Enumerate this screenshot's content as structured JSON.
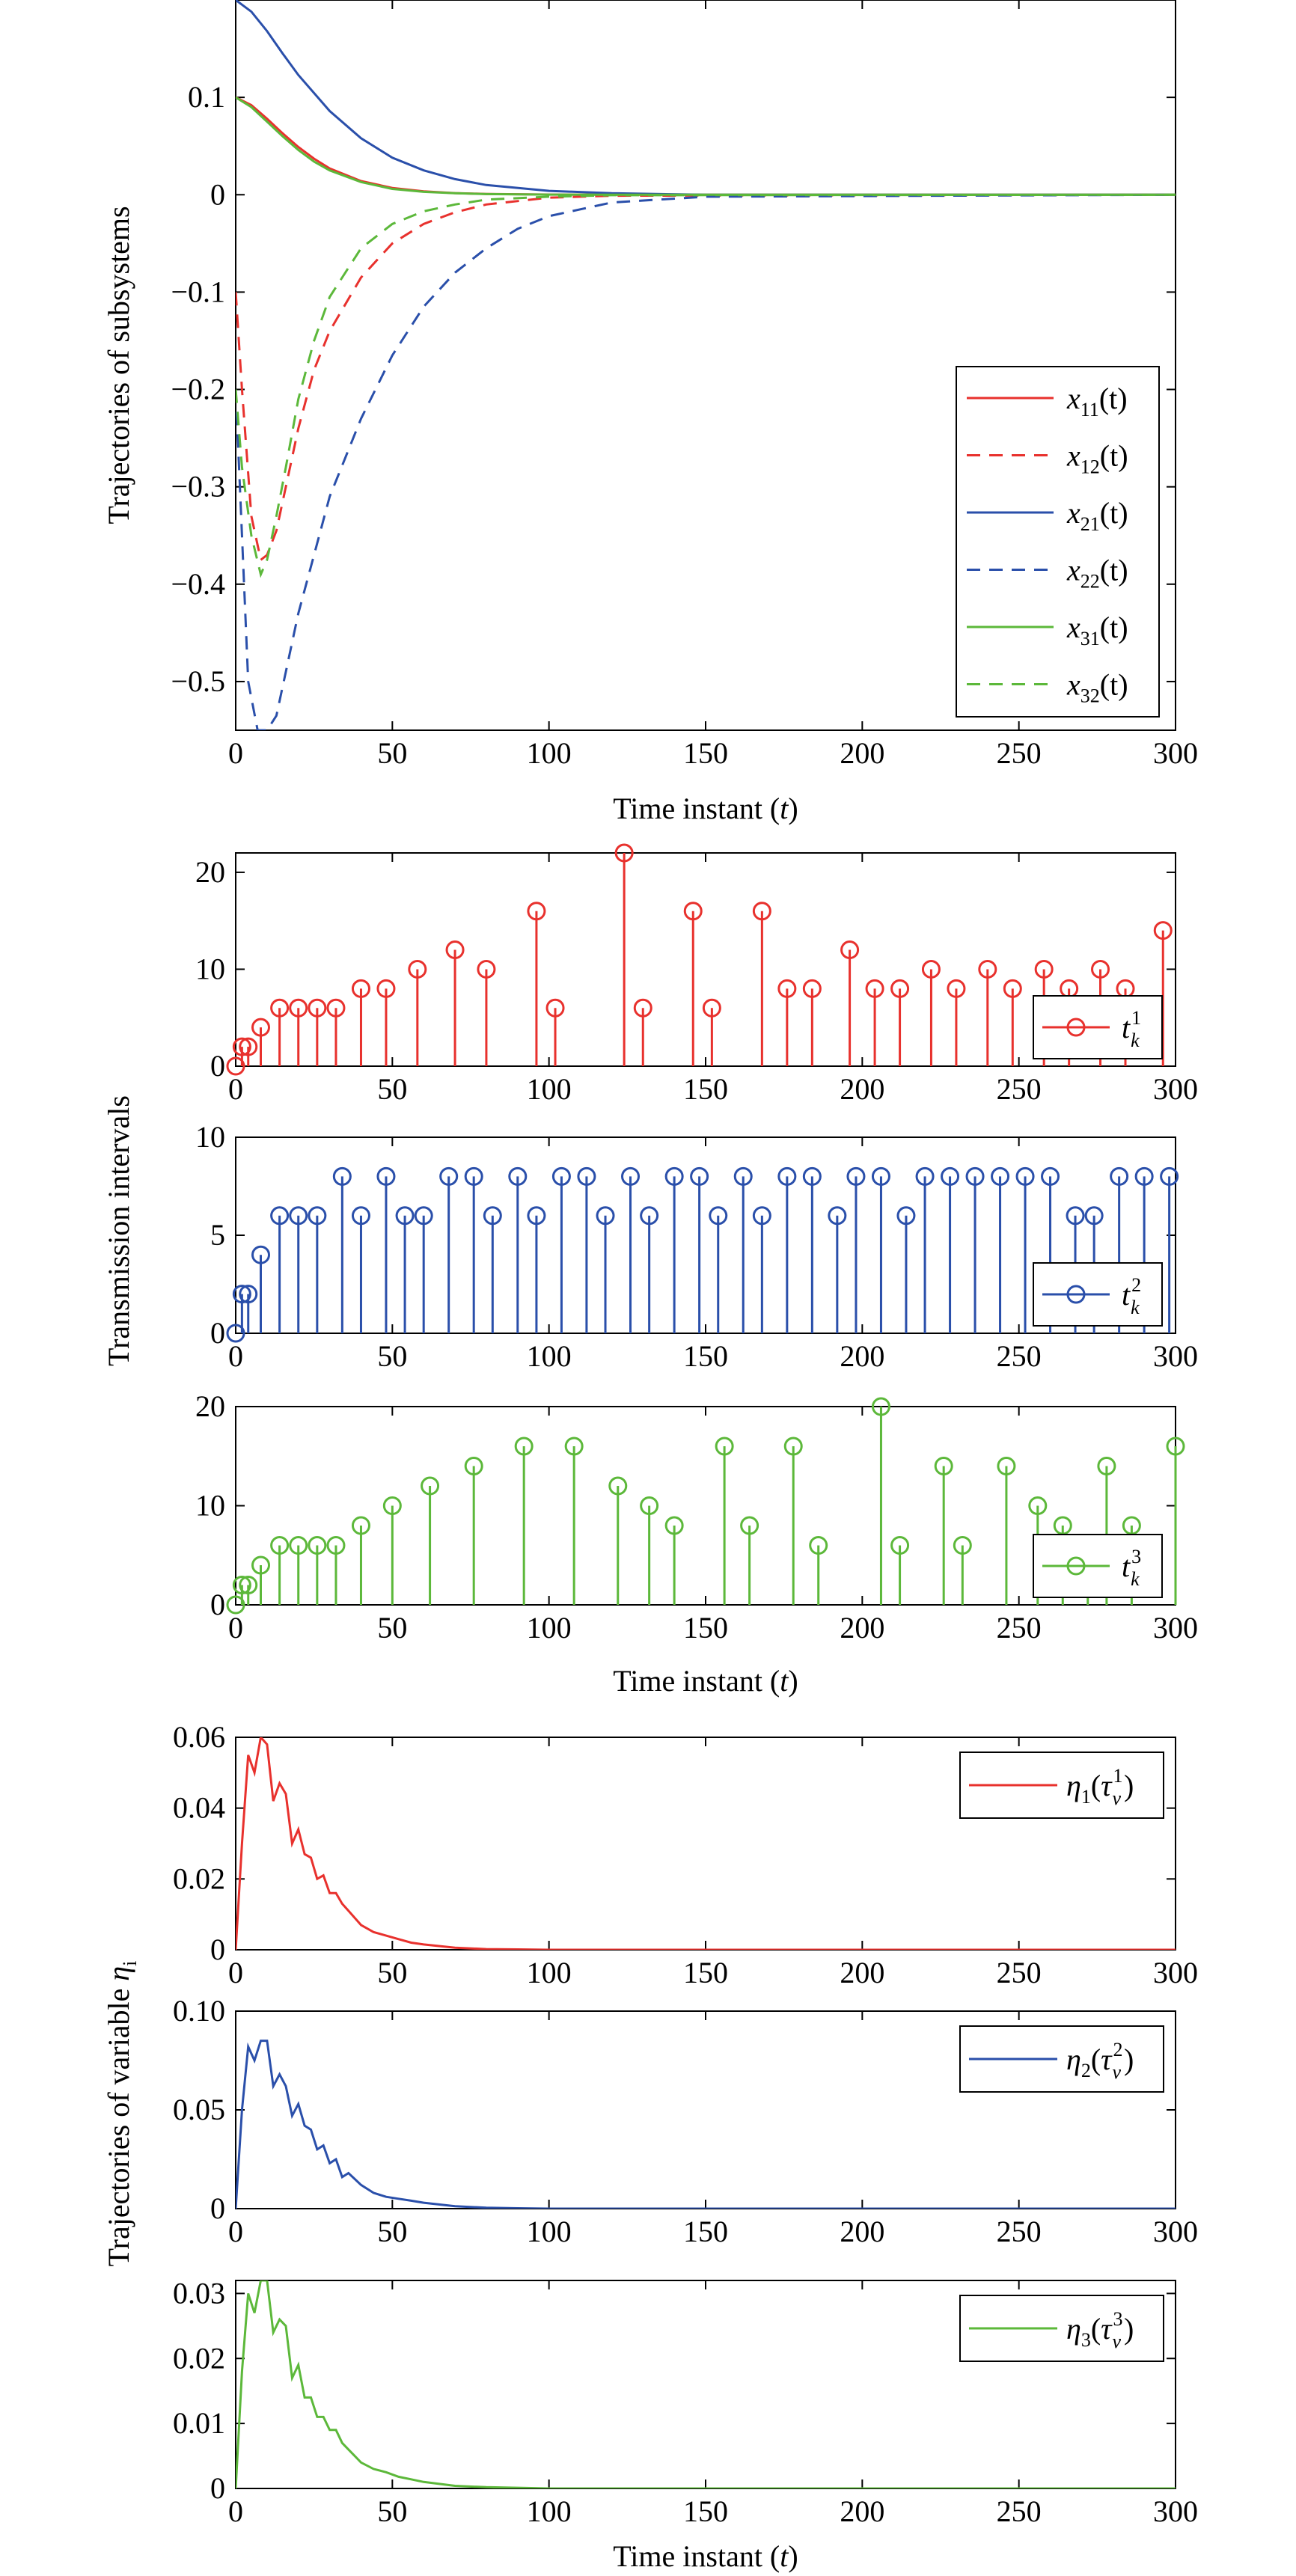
{
  "colors": {
    "red": "#e8312d",
    "blue": "#2a4faa",
    "green": "#5cb83a"
  },
  "chart_data": [
    {
      "type": "line",
      "ylabel": "Trajectories of subsystems",
      "xlabel": "Time instant",
      "xlabel_var": "t",
      "xlim": [
        0,
        300
      ],
      "ylim": [
        -0.55,
        0.2
      ],
      "xticks": [
        0,
        50,
        100,
        150,
        200,
        250,
        300
      ],
      "yticks": [
        0.1,
        0,
        -0.1,
        -0.2,
        -0.3,
        -0.4,
        -0.5
      ],
      "ytick_labels": [
        "0.1",
        "0",
        "−0.1",
        "−0.2",
        "−0.3",
        "−0.4",
        "−0.5"
      ],
      "legend_position": "lower-right",
      "series": [
        {
          "name": "x11(t)",
          "label_base": "x",
          "label_sub": "11",
          "label_arg": "(t)",
          "color": "red",
          "dash": false,
          "x": [
            0,
            5,
            10,
            15,
            20,
            25,
            30,
            40,
            50,
            60,
            70,
            80,
            100,
            120,
            300
          ],
          "y": [
            0.1,
            0.092,
            0.078,
            0.063,
            0.049,
            0.037,
            0.027,
            0.014,
            0.007,
            0.0035,
            0.0017,
            0.0008,
            0.0002,
            0.0,
            0.0
          ]
        },
        {
          "name": "x12(t)",
          "label_base": "x",
          "label_sub": "12",
          "label_arg": "(t)",
          "color": "red",
          "dash": true,
          "x": [
            0,
            2,
            5,
            8,
            10,
            13,
            16,
            20,
            25,
            30,
            40,
            50,
            60,
            70,
            80,
            100,
            120,
            300
          ],
          "y": [
            -0.1,
            -0.2,
            -0.33,
            -0.375,
            -0.37,
            -0.345,
            -0.3,
            -0.24,
            -0.18,
            -0.14,
            -0.085,
            -0.05,
            -0.03,
            -0.018,
            -0.01,
            -0.003,
            -0.001,
            0.0
          ]
        },
        {
          "name": "x21(t)",
          "label_base": "x",
          "label_sub": "21",
          "label_arg": "(t)",
          "color": "blue",
          "dash": false,
          "x": [
            0,
            5,
            10,
            15,
            20,
            30,
            40,
            50,
            60,
            70,
            80,
            100,
            120,
            150,
            300
          ],
          "y": [
            0.2,
            0.188,
            0.168,
            0.145,
            0.123,
            0.086,
            0.058,
            0.038,
            0.025,
            0.016,
            0.01,
            0.004,
            0.0015,
            0.0,
            0.0
          ]
        },
        {
          "name": "x22(t)",
          "label_base": "x",
          "label_sub": "22",
          "label_arg": "(t)",
          "color": "blue",
          "dash": true,
          "x": [
            0,
            2,
            4,
            7,
            10,
            13,
            16,
            20,
            25,
            30,
            40,
            50,
            60,
            70,
            80,
            90,
            100,
            120,
            150,
            300
          ],
          "y": [
            -0.2,
            -0.35,
            -0.5,
            -0.55,
            -0.55,
            -0.535,
            -0.49,
            -0.43,
            -0.37,
            -0.31,
            -0.23,
            -0.165,
            -0.115,
            -0.08,
            -0.055,
            -0.035,
            -0.022,
            -0.008,
            -0.002,
            0.0
          ]
        },
        {
          "name": "x31(t)",
          "label_base": "x",
          "label_sub": "31",
          "label_arg": "(t)",
          "color": "green",
          "dash": false,
          "x": [
            0,
            5,
            10,
            15,
            20,
            25,
            30,
            40,
            50,
            60,
            70,
            80,
            100,
            120,
            300
          ],
          "y": [
            0.1,
            0.09,
            0.075,
            0.06,
            0.046,
            0.034,
            0.025,
            0.013,
            0.006,
            0.003,
            0.0015,
            0.0007,
            0.0001,
            0.0,
            0.0
          ]
        },
        {
          "name": "x32(t)",
          "label_base": "x",
          "label_sub": "32",
          "label_arg": "(t)",
          "color": "green",
          "dash": true,
          "x": [
            0,
            2,
            5,
            8,
            10,
            13,
            16,
            20,
            25,
            30,
            40,
            50,
            60,
            70,
            80,
            100,
            120,
            300
          ],
          "y": [
            -0.2,
            -0.28,
            -0.35,
            -0.39,
            -0.375,
            -0.33,
            -0.28,
            -0.21,
            -0.15,
            -0.105,
            -0.055,
            -0.03,
            -0.017,
            -0.01,
            -0.005,
            -0.002,
            -0.0005,
            0.0
          ]
        }
      ]
    },
    {
      "type": "stem",
      "ylabel": "Transmission intervals",
      "xlabel": "Time instant",
      "xlabel_var": "t",
      "panels": [
        {
          "name": "t_k^1",
          "label_base": "t",
          "label_sub": "k",
          "label_sup": "1",
          "color": "red",
          "ylim": [
            0,
            22
          ],
          "yticks": [
            0,
            10,
            20
          ],
          "show_xlabel": false,
          "x": [
            0,
            2,
            4,
            8,
            14,
            20,
            26,
            32,
            40,
            48,
            58,
            70,
            80,
            96,
            102,
            124,
            130,
            146,
            152,
            168,
            176,
            184,
            196,
            204,
            212,
            222,
            230,
            240,
            248,
            258,
            266,
            276,
            284,
            296
          ],
          "y": [
            0,
            2,
            2,
            4,
            6,
            6,
            6,
            6,
            8,
            8,
            10,
            12,
            10,
            16,
            6,
            22,
            6,
            16,
            6,
            16,
            8,
            8,
            12,
            8,
            8,
            10,
            8,
            10,
            8,
            10,
            8,
            10,
            8,
            14
          ]
        },
        {
          "name": "t_k^2",
          "label_base": "t",
          "label_sub": "k",
          "label_sup": "2",
          "color": "blue",
          "ylim": [
            0,
            10
          ],
          "yticks": [
            0,
            5,
            10
          ],
          "show_xlabel": false,
          "x": [
            0,
            2,
            4,
            8,
            14,
            20,
            26,
            34,
            40,
            48,
            54,
            60,
            68,
            76,
            82,
            90,
            96,
            104,
            112,
            118,
            126,
            132,
            140,
            148,
            154,
            162,
            168,
            176,
            184,
            192,
            198,
            206,
            214,
            220,
            228,
            236,
            244,
            252,
            260,
            268,
            274,
            282,
            290,
            298
          ],
          "y": [
            0,
            2,
            2,
            4,
            6,
            6,
            6,
            8,
            6,
            8,
            6,
            6,
            8,
            8,
            6,
            8,
            6,
            8,
            8,
            6,
            8,
            6,
            8,
            8,
            6,
            8,
            6,
            8,
            8,
            6,
            8,
            8,
            6,
            8,
            8,
            8,
            8,
            8,
            8,
            6,
            6,
            8,
            8,
            8
          ]
        },
        {
          "name": "t_k^3",
          "label_base": "t",
          "label_sub": "k",
          "label_sup": "3",
          "color": "green",
          "ylim": [
            0,
            20
          ],
          "yticks": [
            0,
            10,
            20
          ],
          "show_xlabel": true,
          "x": [
            0,
            2,
            4,
            8,
            14,
            20,
            26,
            32,
            40,
            50,
            62,
            76,
            92,
            108,
            122,
            132,
            140,
            156,
            164,
            178,
            186,
            206,
            212,
            226,
            232,
            246,
            256,
            264,
            272,
            278,
            286,
            300
          ],
          "y": [
            0,
            2,
            2,
            4,
            6,
            6,
            6,
            6,
            8,
            10,
            12,
            14,
            16,
            16,
            12,
            10,
            8,
            16,
            8,
            16,
            6,
            20,
            6,
            14,
            6,
            14,
            10,
            8,
            6,
            14,
            8,
            16
          ]
        }
      ]
    },
    {
      "type": "line",
      "ylabel": "Trajectories of variable",
      "ylabel_var": "η",
      "ylabel_var_sub": "i",
      "xlabel": "Time instant",
      "xlabel_var": "t",
      "panels": [
        {
          "name": "η1(τv1)",
          "eta_sub": "1",
          "tau_sup": "1",
          "color": "red",
          "ylim": [
            0,
            0.06
          ],
          "yticks": [
            0,
            0.02,
            0.04,
            0.06
          ],
          "ytick_labels": [
            "0",
            "0.02",
            "0.04",
            "0.06"
          ],
          "show_xlabel": false,
          "x": [
            0,
            2,
            4,
            6,
            8,
            10,
            12,
            14,
            16,
            18,
            20,
            22,
            24,
            26,
            28,
            30,
            32,
            34,
            36,
            38,
            40,
            44,
            48,
            52,
            56,
            60,
            70,
            80,
            90,
            100,
            300
          ],
          "y": [
            0,
            0.03,
            0.055,
            0.05,
            0.06,
            0.058,
            0.042,
            0.047,
            0.044,
            0.03,
            0.034,
            0.027,
            0.026,
            0.02,
            0.021,
            0.016,
            0.016,
            0.013,
            0.011,
            0.009,
            0.007,
            0.005,
            0.004,
            0.003,
            0.002,
            0.0015,
            0.0006,
            0.0002,
            0.0001,
            0.0,
            0.0
          ]
        },
        {
          "name": "η2(τv2)",
          "eta_sub": "2",
          "tau_sup": "2",
          "color": "blue",
          "ylim": [
            0,
            0.1
          ],
          "yticks": [
            0,
            0.05,
            0.1
          ],
          "ytick_labels": [
            "0",
            "0.05",
            "0.10"
          ],
          "show_xlabel": false,
          "x": [
            0,
            2,
            4,
            6,
            8,
            10,
            12,
            14,
            16,
            18,
            20,
            22,
            24,
            26,
            28,
            30,
            32,
            34,
            36,
            38,
            40,
            44,
            48,
            52,
            56,
            60,
            70,
            80,
            90,
            100,
            300
          ],
          "y": [
            0,
            0.05,
            0.082,
            0.075,
            0.085,
            0.085,
            0.062,
            0.068,
            0.062,
            0.047,
            0.053,
            0.042,
            0.04,
            0.03,
            0.032,
            0.023,
            0.025,
            0.016,
            0.018,
            0.015,
            0.012,
            0.008,
            0.006,
            0.005,
            0.004,
            0.003,
            0.0012,
            0.0005,
            0.0002,
            0.0,
            0.0
          ]
        },
        {
          "name": "η3(τv3)",
          "eta_sub": "3",
          "tau_sup": "3",
          "color": "green",
          "ylim": [
            0,
            0.032
          ],
          "yticks": [
            0,
            0.01,
            0.02,
            0.03
          ],
          "ytick_labels": [
            "0",
            "0.01",
            "0.02",
            "0.03"
          ],
          "show_xlabel": true,
          "x": [
            0,
            2,
            4,
            6,
            8,
            10,
            12,
            14,
            16,
            18,
            20,
            22,
            24,
            26,
            28,
            30,
            32,
            34,
            36,
            38,
            40,
            44,
            48,
            52,
            56,
            60,
            70,
            80,
            90,
            100,
            300
          ],
          "y": [
            0,
            0.018,
            0.03,
            0.027,
            0.032,
            0.032,
            0.024,
            0.026,
            0.025,
            0.017,
            0.019,
            0.014,
            0.014,
            0.011,
            0.011,
            0.009,
            0.009,
            0.007,
            0.006,
            0.005,
            0.004,
            0.003,
            0.0025,
            0.0018,
            0.0014,
            0.001,
            0.0004,
            0.0002,
            0.0001,
            0.0,
            0.0
          ]
        }
      ]
    }
  ]
}
